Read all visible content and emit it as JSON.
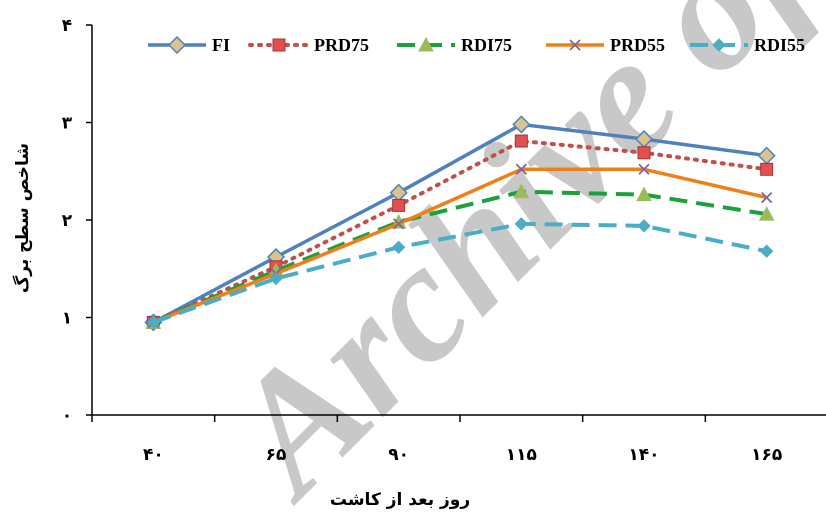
{
  "chart_data": {
    "type": "line",
    "xlabel": "روز بعد از کاشت",
    "ylabel": "شاخص سطح برگ",
    "x": [
      40,
      65,
      90,
      115,
      140,
      165
    ],
    "x_tick_labels": [
      "۴۰",
      "۶۵",
      "۹۰",
      "۱۱۵",
      "۱۴۰",
      "۱۶۵"
    ],
    "ylim": [
      0,
      4
    ],
    "y_ticks": [
      0,
      1,
      2,
      3,
      4
    ],
    "y_tick_labels": [
      "۰",
      "۱",
      "۲",
      "۳",
      "۴"
    ],
    "grid": false,
    "legend_position": "top",
    "series": [
      {
        "name": "FI",
        "color": "#4f81bd",
        "line": "solid",
        "marker": "diamond",
        "values": [
          0.95,
          1.62,
          2.28,
          2.98,
          2.83,
          2.66
        ]
      },
      {
        "name": "PRD75",
        "color": "#c0504d",
        "line": "dotted",
        "marker": "square",
        "values": [
          0.95,
          1.52,
          2.15,
          2.81,
          2.69,
          2.52
        ]
      },
      {
        "name": "RDI75",
        "color": "#1aa13c",
        "line": "dashed",
        "marker": "triangle",
        "values": [
          0.95,
          1.48,
          1.98,
          2.29,
          2.26,
          2.06
        ]
      },
      {
        "name": "PRD55",
        "color": "#f07f1a",
        "line": "solid",
        "marker": "x",
        "values": [
          0.95,
          1.45,
          1.96,
          2.52,
          2.52,
          2.23
        ]
      },
      {
        "name": "RDI55",
        "color": "#4bacc6",
        "line": "dashed",
        "marker": "diamond",
        "values": [
          0.95,
          1.4,
          1.72,
          1.96,
          1.94,
          1.68
        ]
      }
    ]
  },
  "watermark": "Archive of SID"
}
